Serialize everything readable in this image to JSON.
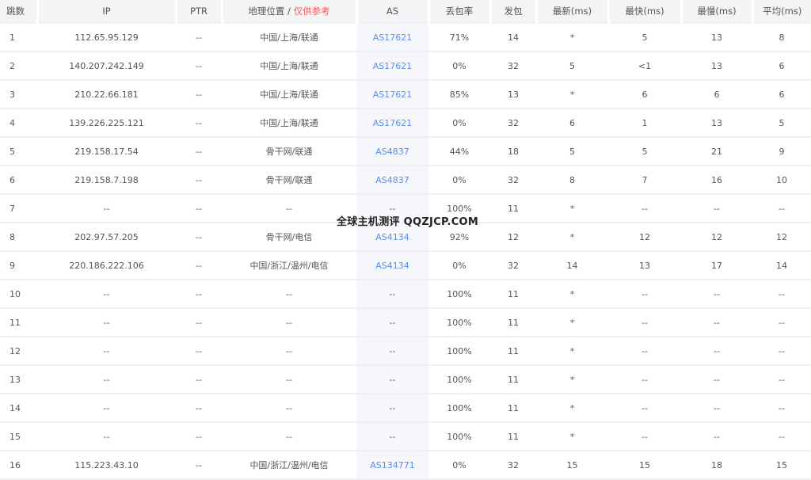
{
  "headers": {
    "hop": "跳数",
    "ip": "IP",
    "ptr": "PTR",
    "geo": "地理位置 /",
    "geo_note": "仅供参考",
    "as": "AS",
    "loss": "丢包率",
    "sent": "发包",
    "last": "最新(ms)",
    "best": "最快(ms)",
    "worst": "最慢(ms)",
    "avg": "平均(ms)"
  },
  "colors": {
    "accent": "#5b8def",
    "warning": "#f25c5c"
  },
  "watermark": "全球主机测评 QQZJCP.COM",
  "rows": [
    {
      "hop": "1",
      "ip": "112.65.95.129",
      "ptr": "--",
      "geo": "中国/上海/联通",
      "as": "AS17621",
      "loss": "71%",
      "sent": "14",
      "last": "*",
      "best": "5",
      "worst": "13",
      "avg": "8"
    },
    {
      "hop": "2",
      "ip": "140.207.242.149",
      "ptr": "--",
      "geo": "中国/上海/联通",
      "as": "AS17621",
      "loss": "0%",
      "sent": "32",
      "last": "5",
      "best": "<1",
      "worst": "13",
      "avg": "6"
    },
    {
      "hop": "3",
      "ip": "210.22.66.181",
      "ptr": "--",
      "geo": "中国/上海/联通",
      "as": "AS17621",
      "loss": "85%",
      "sent": "13",
      "last": "*",
      "best": "6",
      "worst": "6",
      "avg": "6"
    },
    {
      "hop": "4",
      "ip": "139.226.225.121",
      "ptr": "--",
      "geo": "中国/上海/联通",
      "as": "AS17621",
      "loss": "0%",
      "sent": "32",
      "last": "6",
      "best": "1",
      "worst": "13",
      "avg": "5"
    },
    {
      "hop": "5",
      "ip": "219.158.17.54",
      "ptr": "--",
      "geo": "骨干网/联通",
      "as": "AS4837",
      "loss": "44%",
      "sent": "18",
      "last": "5",
      "best": "5",
      "worst": "21",
      "avg": "9"
    },
    {
      "hop": "6",
      "ip": "219.158.7.198",
      "ptr": "--",
      "geo": "骨干网/联通",
      "as": "AS4837",
      "loss": "0%",
      "sent": "32",
      "last": "8",
      "best": "7",
      "worst": "16",
      "avg": "10"
    },
    {
      "hop": "7",
      "ip": "--",
      "ptr": "--",
      "geo": "--",
      "as": "--",
      "loss": "100%",
      "sent": "11",
      "last": "*",
      "best": "--",
      "worst": "--",
      "avg": "--"
    },
    {
      "hop": "8",
      "ip": "202.97.57.205",
      "ptr": "--",
      "geo": "骨干网/电信",
      "as": "AS4134",
      "loss": "92%",
      "sent": "12",
      "last": "*",
      "best": "12",
      "worst": "12",
      "avg": "12"
    },
    {
      "hop": "9",
      "ip": "220.186.222.106",
      "ptr": "--",
      "geo": "中国/浙江/温州/电信",
      "as": "AS4134",
      "loss": "0%",
      "sent": "32",
      "last": "14",
      "best": "13",
      "worst": "17",
      "avg": "14"
    },
    {
      "hop": "10",
      "ip": "--",
      "ptr": "--",
      "geo": "--",
      "as": "--",
      "loss": "100%",
      "sent": "11",
      "last": "*",
      "best": "--",
      "worst": "--",
      "avg": "--"
    },
    {
      "hop": "11",
      "ip": "--",
      "ptr": "--",
      "geo": "--",
      "as": "--",
      "loss": "100%",
      "sent": "11",
      "last": "*",
      "best": "--",
      "worst": "--",
      "avg": "--"
    },
    {
      "hop": "12",
      "ip": "--",
      "ptr": "--",
      "geo": "--",
      "as": "--",
      "loss": "100%",
      "sent": "11",
      "last": "*",
      "best": "--",
      "worst": "--",
      "avg": "--"
    },
    {
      "hop": "13",
      "ip": "--",
      "ptr": "--",
      "geo": "--",
      "as": "--",
      "loss": "100%",
      "sent": "11",
      "last": "*",
      "best": "--",
      "worst": "--",
      "avg": "--"
    },
    {
      "hop": "14",
      "ip": "--",
      "ptr": "--",
      "geo": "--",
      "as": "--",
      "loss": "100%",
      "sent": "11",
      "last": "*",
      "best": "--",
      "worst": "--",
      "avg": "--"
    },
    {
      "hop": "15",
      "ip": "--",
      "ptr": "--",
      "geo": "--",
      "as": "--",
      "loss": "100%",
      "sent": "11",
      "last": "*",
      "best": "--",
      "worst": "--",
      "avg": "--"
    },
    {
      "hop": "16",
      "ip": "115.223.43.10",
      "ptr": "--",
      "geo": "中国/浙江/温州/电信",
      "as": "AS134771",
      "loss": "0%",
      "sent": "32",
      "last": "15",
      "best": "15",
      "worst": "18",
      "avg": "15"
    }
  ]
}
